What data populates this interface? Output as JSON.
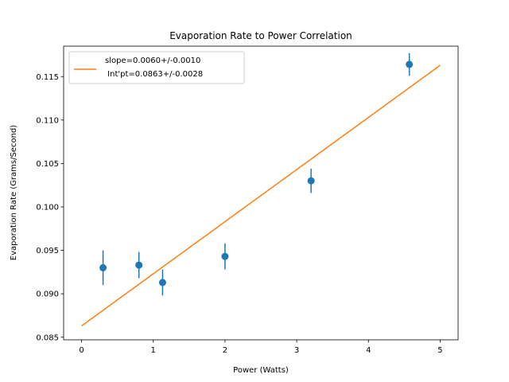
{
  "chart_data": {
    "type": "scatter",
    "title": "Evaporation Rate to Power Correlation",
    "xlabel": "Power (Watts)",
    "ylabel": "Evaporation Rate (Grams/Second)",
    "xlim": [
      -0.25,
      5.25
    ],
    "ylim": [
      0.0847,
      0.1185
    ],
    "xticks": [
      0,
      1,
      2,
      3,
      4,
      5
    ],
    "yticks": [
      0.085,
      0.09,
      0.095,
      0.1,
      0.105,
      0.11,
      0.115
    ],
    "xtick_labels": [
      "0",
      "1",
      "2",
      "3",
      "4",
      "5"
    ],
    "ytick_labels": [
      "0.085",
      "0.090",
      "0.095",
      "0.100",
      "0.105",
      "0.110",
      "0.115"
    ],
    "grid": false,
    "legend_position": "upper-left",
    "series": [
      {
        "kind": "errorbar",
        "color": "#1f77b4",
        "x": [
          0.3,
          0.8,
          1.13,
          2.0,
          3.2,
          4.57
        ],
        "y": [
          0.093,
          0.0933,
          0.0913,
          0.0943,
          0.103,
          0.1164
        ],
        "yerr": [
          0.002,
          0.0015,
          0.0015,
          0.0015,
          0.0014,
          0.0013
        ]
      },
      {
        "kind": "line",
        "color": "#ff7f0e",
        "name": "slope=0.0060+/-0.0010\n Int'pt=0.0863+/-0.0028",
        "x": [
          0,
          5
        ],
        "y": [
          0.0863,
          0.1163
        ]
      }
    ],
    "legend": {
      "line1": "slope=0.0060+/-0.0010",
      "line2": " Int'pt=0.0863+/-0.0028"
    }
  }
}
